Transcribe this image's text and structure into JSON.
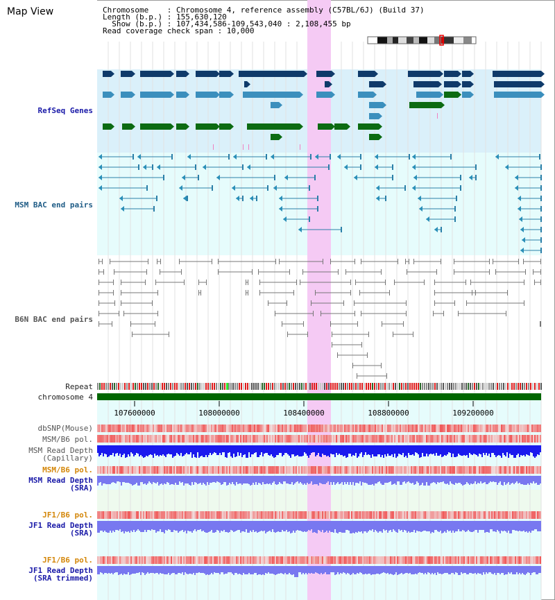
{
  "app": {
    "title": "Map View"
  },
  "info": {
    "chromosome_line": "Chromosome    : Chromosome 4, reference assembly (C57BL/6J) (Build 37)",
    "length_line": "Length (b.p.) : 155,630,120",
    "show_line": "  Show (b.p.) : 107,434,586-109,543,040 : 2,108,455 bp",
    "coverage_line": "Read coverage check span : 10,000"
  },
  "tracks": {
    "refseq": "RefSeq Genes",
    "msm_bac": "MSM BAC end pairs",
    "b6n_bac": "B6N BAC end pairs",
    "repeat": "Repeat",
    "chromosome": "chromosome 4",
    "dbsnp": "dbSNP(Mouse)",
    "msm_b6_pol_1": "MSM/B6 pol.",
    "msm_depth_cap": "MSM Read Depth\n(Capillary)",
    "msm_b6_pol_2": "MSM/B6 pol.",
    "msm_depth_sra": "MSM Read Depth\n(SRA)",
    "jf1_b6_pol_1": "JF1/B6 pol.",
    "jf1_depth_sra": "JF1 Read Depth\n(SRA)",
    "jf1_b6_pol_2": "JF1/B6 pol.",
    "jf1_depth_trim": "JF1 Read Depth\n(SRA trimmed)"
  },
  "axis": {
    "ticks": [
      "107600000",
      "108000000",
      "108400000",
      "108800000",
      "109200000"
    ]
  },
  "colors": {
    "refseq_bg": "#daf0fa",
    "bac_bg": "#e6fcfc",
    "highlight": "#f5d2f5",
    "chromosome": "#006600",
    "depth_blue": "#1a1aee",
    "depth_light": "#7878f0"
  }
}
